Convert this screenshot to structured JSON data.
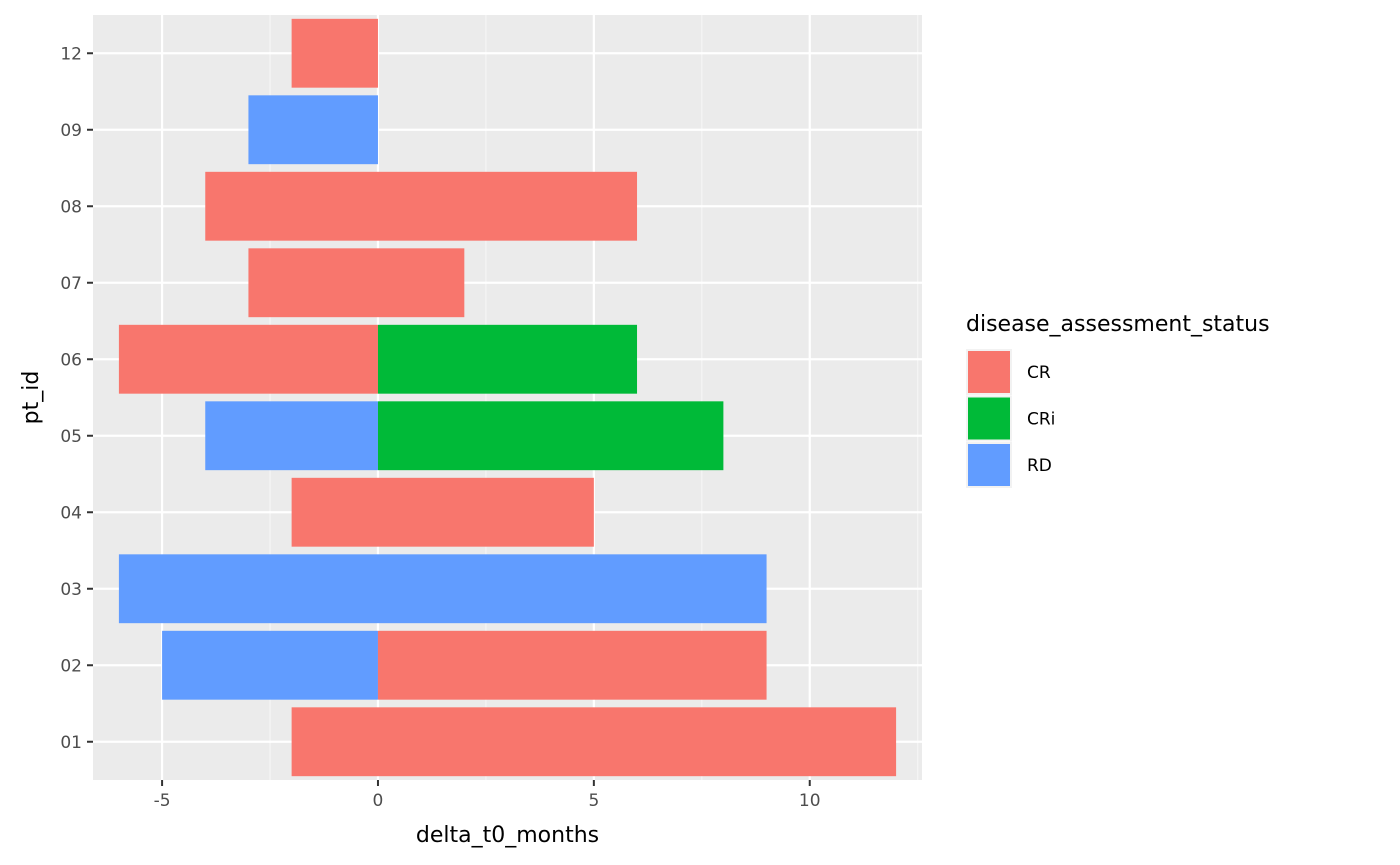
{
  "chart_data": {
    "type": "bar",
    "orientation": "horizontal",
    "stacked": true,
    "categories": [
      "01",
      "02",
      "03",
      "04",
      "05",
      "06",
      "07",
      "08",
      "09",
      "12"
    ],
    "xlabel": "delta_t0_months",
    "ylabel": "pt_id",
    "xlim": [
      -6.6,
      12.6
    ],
    "xticks": [
      -5,
      0,
      5,
      10
    ],
    "xtick_labels": [
      "-5",
      "0",
      "5",
      "10"
    ],
    "grid": true,
    "legend": {
      "title": "disease_assessment_status",
      "placement": "right",
      "entries": [
        {
          "label": "CR",
          "color": "#F8766D"
        },
        {
          "label": "CRi",
          "color": "#00BA38"
        },
        {
          "label": "RD",
          "color": "#619CFF"
        }
      ]
    },
    "segments": [
      {
        "category": "01",
        "status": "CR",
        "start": -2,
        "end": 12
      },
      {
        "category": "02",
        "status": "RD",
        "start": -5,
        "end": 0
      },
      {
        "category": "02",
        "status": "CR",
        "start": 0,
        "end": 9
      },
      {
        "category": "03",
        "status": "RD",
        "start": -6,
        "end": 9
      },
      {
        "category": "04",
        "status": "CR",
        "start": -2,
        "end": 5
      },
      {
        "category": "05",
        "status": "RD",
        "start": -4,
        "end": 0
      },
      {
        "category": "05",
        "status": "CRi",
        "start": 0,
        "end": 8
      },
      {
        "category": "06",
        "status": "CR",
        "start": -6,
        "end": 0
      },
      {
        "category": "06",
        "status": "CRi",
        "start": 0,
        "end": 6
      },
      {
        "category": "07",
        "status": "CR",
        "start": -3,
        "end": 2
      },
      {
        "category": "08",
        "status": "CR",
        "start": -4,
        "end": 6
      },
      {
        "category": "09",
        "status": "RD",
        "start": -3,
        "end": 0
      },
      {
        "category": "12",
        "status": "CR",
        "start": -2,
        "end": 0
      }
    ],
    "colors": {
      "panel_background": "#EBEBEB",
      "grid_major": "#FFFFFF",
      "grid_minor": "#F5F5F5",
      "tick": "#333333"
    }
  }
}
